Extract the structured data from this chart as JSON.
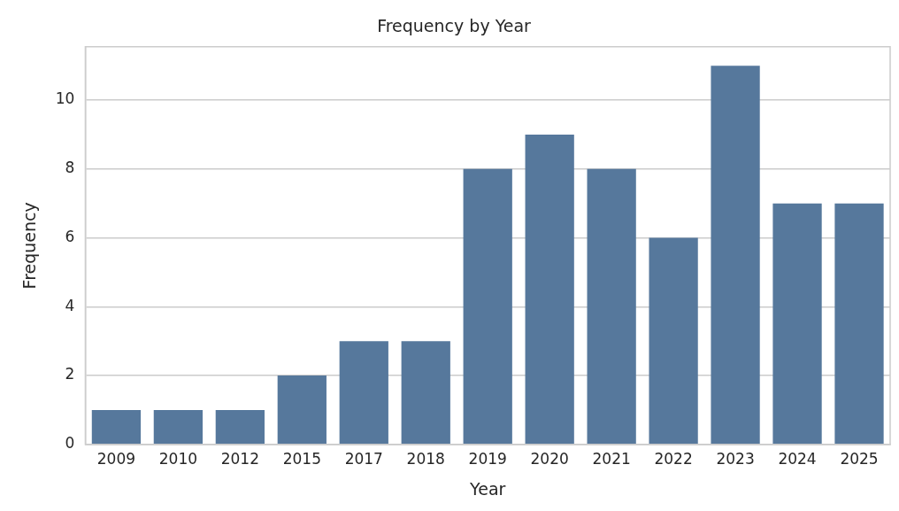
{
  "chart_data": {
    "type": "bar",
    "title": "Frequency by Year",
    "xlabel": "Year",
    "ylabel": "Frequency",
    "categories": [
      "2009",
      "2010",
      "2012",
      "2015",
      "2017",
      "2018",
      "2019",
      "2020",
      "2021",
      "2022",
      "2023",
      "2024",
      "2025"
    ],
    "values": [
      1,
      1,
      1,
      2,
      3,
      3,
      8,
      9,
      8,
      6,
      11,
      7,
      7
    ],
    "color": "#56789c",
    "ylim": [
      0,
      11.55
    ],
    "yticks": [
      0,
      2,
      4,
      6,
      8,
      10
    ],
    "grid": "y",
    "legend": false
  }
}
